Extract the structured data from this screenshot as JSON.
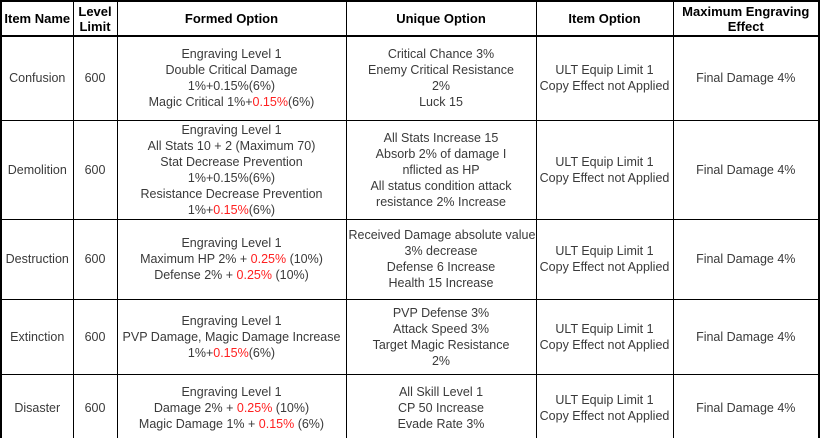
{
  "colors": {
    "text": "#3a3a3a",
    "highlight_red": "#ff2020",
    "border": "#000000",
    "background": "#ffffff"
  },
  "table": {
    "headers": [
      "Item Name",
      "Level Limit",
      "Formed Option",
      "Unique Option",
      "Item Option",
      "Maximum Engraving Effect"
    ],
    "rows": [
      {
        "item_name": "Confusion",
        "level_limit": "600",
        "formed_option": [
          [
            {
              "text": "Engraving Level 1"
            }
          ],
          [
            {
              "text": "Double Critical Damage"
            }
          ],
          [
            {
              "text": "1%+0.15%(6%)"
            }
          ],
          [
            {
              "text": "Magic Critical 1%+"
            },
            {
              "text": "0.15%",
              "red": true
            },
            {
              "text": "(6%)"
            }
          ]
        ],
        "unique_option": [
          "Critical Chance 3%",
          "Enemy Critical Resistance",
          "2%",
          "Luck 15"
        ],
        "item_option": [
          "ULT Equip Limit 1",
          "Copy Effect not Applied"
        ],
        "max_engraving_effect": "Final Damage 4%"
      },
      {
        "item_name": "Demolition",
        "level_limit": "600",
        "formed_option": [
          [
            {
              "text": "Engraving Level 1"
            }
          ],
          [
            {
              "text": "All Stats 10 + 2 (Maximum 70)"
            }
          ],
          [
            {
              "text": "Stat Decrease Prevention"
            }
          ],
          [
            {
              "text": "1%+0.15%(6%)"
            }
          ],
          [
            {
              "text": "Resistance Decrease Prevention"
            }
          ],
          [
            {
              "text": "1%+"
            },
            {
              "text": "0.15%",
              "red": true
            },
            {
              "text": "(6%)"
            }
          ]
        ],
        "unique_option": [
          "All Stats Increase 15",
          "Absorb 2% of damage I",
          "nflicted as HP",
          "All status condition attack",
          "resistance 2% Increase"
        ],
        "item_option": [
          "ULT Equip Limit 1",
          "Copy Effect not Applied"
        ],
        "max_engraving_effect": "Final Damage 4%"
      },
      {
        "item_name": "Destruction",
        "level_limit": "600",
        "formed_option": [
          [
            {
              "text": "Engraving Level 1"
            }
          ],
          [
            {
              "text": "Maximum HP 2% + "
            },
            {
              "text": "0.25%",
              "red": true
            },
            {
              "text": " (10%)"
            }
          ],
          [
            {
              "text": "Defense 2% + "
            },
            {
              "text": "0.25%",
              "red": true
            },
            {
              "text": " (10%)"
            }
          ]
        ],
        "unique_option": [
          "Received Damage absolute value",
          "3% decrease",
          "Defense 6 Increase",
          "Health 15 Increase"
        ],
        "item_option": [
          "ULT Equip Limit 1",
          "Copy Effect not Applied"
        ],
        "max_engraving_effect": "Final Damage 4%"
      },
      {
        "item_name": "Extinction",
        "level_limit": "600",
        "formed_option": [
          [
            {
              "text": "Engraving Level 1"
            }
          ],
          [
            {
              "text": "PVP Damage, Magic Damage Increase"
            }
          ],
          [
            {
              "text": "1%+"
            },
            {
              "text": "0.15%",
              "red": true
            },
            {
              "text": "(6%)"
            }
          ]
        ],
        "unique_option": [
          "PVP Defense 3%",
          "Attack Speed 3%",
          "Target Magic Resistance",
          "2%"
        ],
        "item_option": [
          "ULT Equip Limit 1",
          "Copy Effect not Applied"
        ],
        "max_engraving_effect": "Final Damage 4%"
      },
      {
        "item_name": "Disaster",
        "level_limit": "600",
        "formed_option": [
          [
            {
              "text": "Engraving Level 1"
            }
          ],
          [
            {
              "text": "Damage 2% + "
            },
            {
              "text": "0.25%",
              "red": true
            },
            {
              "text": " (10%)"
            }
          ],
          [
            {
              "text": "Magic Damage 1% + "
            },
            {
              "text": "0.15%",
              "red": true
            },
            {
              "text": " (6%)"
            }
          ]
        ],
        "unique_option": [
          "All Skill Level 1",
          "CP 50 Increase",
          "Evade Rate 3%"
        ],
        "item_option": [
          "ULT Equip Limit 1",
          "Copy Effect not Applied"
        ],
        "max_engraving_effect": "Final Damage 4%"
      }
    ]
  }
}
